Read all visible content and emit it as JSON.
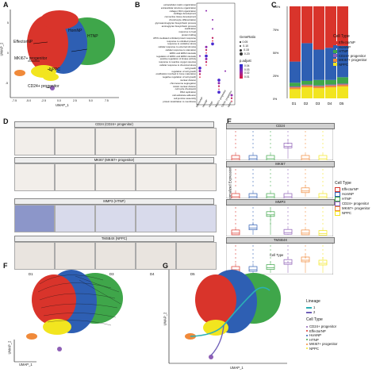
{
  "panels": {
    "A": "A",
    "B": "B",
    "C": "C",
    "D": "D",
    "E": "E",
    "F": "F",
    "G": "G"
  },
  "umap": {
    "x_label": "UMAP_1",
    "y_label": "UMAP_2"
  },
  "panelA": {
    "clusters": {
      "homnp": "HomNP",
      "htnp": "HTNP",
      "effectornp": "EffectorNP",
      "mki67": "MKI67+ progenitor",
      "nppc": "NPPC",
      "cd24": "CD24+ progenitor"
    },
    "x_ticks": [
      "-7.5",
      "-5.0",
      "-2.5",
      "0.0",
      "2.5",
      "5.0",
      "7.5"
    ],
    "y_ticks": [
      "5",
      "0",
      "-5"
    ]
  },
  "panelB": {
    "terms": [
      "extracellular matrix organization",
      "extracellular structure organization",
      "collagen fibril organization",
      "cartilage development",
      "connective tissue development",
      "chondrocyte differentiation",
      "glycosaminoglycan biosynthetic process",
      "aminoglycan biosynthetic process",
      "ossification",
      "response to heat",
      "protein folding",
      "ATF6-mediated unfolded protein response",
      "response to unfolded protein",
      "response to oxidative stress",
      "cellular response to external stimulus",
      "cellular response to starvation",
      "ERK1 and ERK2 cascade",
      "regulation of ERK1 and ERK2 cascade",
      "positive regulation of kinase activity",
      "response to reactive oxygen species",
      "cellular response to chemical stress",
      "cell growth",
      "regulation of cell growth",
      "ossification involved in bone maturation",
      "negative regulation of cell growth",
      "nuclear division",
      "chromosome segregation",
      "mitotic nuclear division",
      "cell cycle checkpoint",
      "DNA replication",
      "cell-substrate adhesion",
      "cell junction assembly",
      "protein localization to membrane"
    ],
    "columns": [
      "EffectorNP",
      "HomNP",
      "HTNP",
      "MKI67+ progenitor",
      "CD24+ progenitor",
      "NPPC"
    ],
    "size_legend_title": "GeneRatio",
    "size_legend_values": [
      "0.05",
      "0.10",
      "0.15",
      "0.20"
    ],
    "color_legend_title": "p.adjust",
    "color_legend_values": [
      "0.04",
      "0.03",
      "0.02",
      "0.01"
    ]
  },
  "panelC": {
    "legend_title": "Cell Type",
    "legend": [
      {
        "label": "EffectorNP",
        "color": "#d9342b"
      },
      {
        "label": "HomNP",
        "color": "#2e5fb3"
      },
      {
        "label": "HTNP",
        "color": "#3fa64a"
      },
      {
        "label": "CD24+ progenitor",
        "color": "#8e5fb6"
      },
      {
        "label": "MKI67+ progenitor",
        "color": "#f08a3a"
      },
      {
        "label": "NPPC",
        "color": "#f2e51f"
      }
    ],
    "y_ticks": [
      "100%",
      "75%",
      "50%",
      "25%",
      "0%"
    ]
  },
  "panelD": {
    "rows": [
      "CD24 (CD24+ progenitor)",
      "MKI67 (MKI67+ progenitor)",
      "MMP3 (HTNP)",
      "TMSB4X (NPPC)"
    ],
    "columns": [
      "D1",
      "D2",
      "D3",
      "D4",
      "D5"
    ]
  },
  "panelE": {
    "genes": [
      "CD24",
      "MKI67",
      "MMP3",
      "TMSB4X"
    ],
    "y_label": "Normalized Expression",
    "x_label": "Cell Type",
    "legend_title": "Cell Type"
  },
  "panelG": {
    "lineage_title": "Lineage",
    "lineages": [
      "1",
      "2"
    ],
    "celltype_title": "Cell Type",
    "celltypes": [
      "CD24+ progenitor",
      "EffectorNP",
      "HomNP",
      "HTNP",
      "MKI67+ progenitor",
      "NPPC"
    ]
  },
  "chart_data": [
    {
      "type": "bar",
      "title": "",
      "categories": [
        "D1",
        "D2",
        "D3",
        "D4",
        "D5"
      ],
      "ylim": [
        0,
        100
      ],
      "series": [
        {
          "name": "NPPC",
          "values": [
            10,
            12,
            11,
            12,
            13
          ]
        },
        {
          "name": "MKI67+ progenitor",
          "values": [
            2,
            2,
            2,
            2,
            2
          ]
        },
        {
          "name": "CD24+ progenitor",
          "values": [
            1,
            1,
            1,
            1,
            1
          ]
        },
        {
          "name": "HTNP",
          "values": [
            4,
            4,
            6,
            5,
            7
          ]
        },
        {
          "name": "HomNP",
          "values": [
            23,
            41,
            33,
            35,
            34
          ]
        },
        {
          "name": "EffectorNP",
          "values": [
            60,
            40,
            47,
            45,
            43
          ]
        }
      ]
    },
    {
      "type": "box",
      "facets": [
        "CD24",
        "MKI67",
        "MMP3",
        "TMSB4X"
      ],
      "categories": [
        "EffectorNP",
        "HomNP",
        "HTNP",
        "CD24+ progenitor",
        "MKI67+ progenitor",
        "NPPC"
      ],
      "medians": {
        "CD24": [
          0,
          0,
          0,
          1.3,
          0,
          0
        ],
        "MKI67": [
          0,
          0,
          0,
          0,
          0.6,
          0
        ],
        "MMP3": [
          0.3,
          1.2,
          3.6,
          0.4,
          0.3,
          0.2
        ],
        "TMSB4X": [
          0.5,
          0.5,
          0.8,
          1.6,
          2.0,
          1.5
        ]
      }
    }
  ]
}
